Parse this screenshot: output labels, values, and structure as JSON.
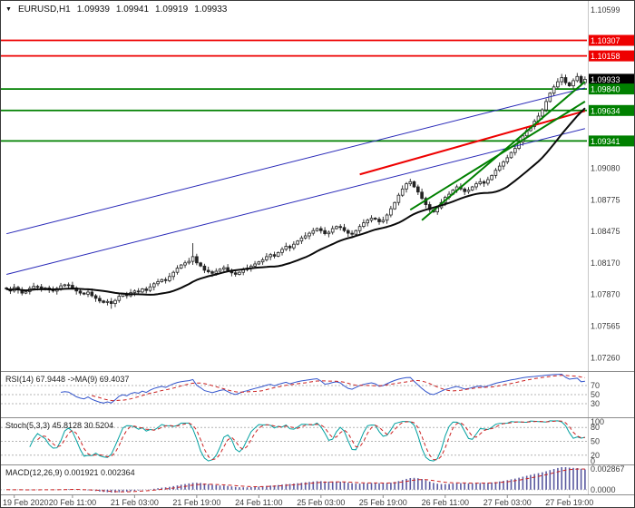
{
  "symbol_info": {
    "dropdown_icon": "▼",
    "symbol": "EURUSD,H1",
    "open": "1.09939",
    "high": "1.09941",
    "low": "1.09919",
    "close": "1.09933"
  },
  "colors": {
    "background": "#ffffff",
    "resistance": "#ee0000",
    "support": "#008000",
    "current_price_bg": "#000000",
    "badge_text": "#ffffff",
    "channel": "#2929b8",
    "candle": "#232323",
    "candle_up_fill": "#ffffff",
    "ma": "#0a0a0a",
    "rsi_line": "#3355cc",
    "rsi_signal": "#cc2222",
    "stoch_line": "#00a0a0",
    "stoch_signal": "#cc2222",
    "macd_hist": "#5a5aa0",
    "macd_signal": "#cc2222",
    "axis_text": "#3c3c3c",
    "level_dash": "#b4b4b4",
    "separator": "#8c8c8c",
    "axis_border": "#c8c8c8"
  },
  "chart_data": {
    "type": "candlestick",
    "title": "EURUSD,H1",
    "timeframe": "H1",
    "ylim": [
      1.07132,
      1.10686
    ],
    "first_open": 1.0793,
    "ma_period": 21,
    "closes": [
      1.0792,
      1.079,
      1.07935,
      1.0791,
      1.0788,
      1.07895,
      1.07925,
      1.07945,
      1.0794,
      1.07915,
      1.0793,
      1.0791,
      1.079,
      1.07925,
      1.0795,
      1.0796,
      1.07955,
      1.0793,
      1.079,
      1.0788,
      1.0787,
      1.0789,
      1.07855,
      1.0783,
      1.07805,
      1.0779,
      1.078,
      1.0778,
      1.0781,
      1.0785,
      1.0787,
      1.07855,
      1.07885,
      1.079,
      1.0789,
      1.0792,
      1.07905,
      1.0794,
      1.0797,
      1.0799,
      1.0801,
      1.08,
      1.0804,
      1.0808,
      1.0812,
      1.0815,
      1.0817,
      1.08185,
      1.0823,
      1.0817,
      1.0814,
      1.081,
      1.08085,
      1.0807,
      1.0809,
      1.0811,
      1.08125,
      1.081,
      1.08075,
      1.0806,
      1.0808,
      1.08105,
      1.0812,
      1.0814,
      1.0816,
      1.0818,
      1.082,
      1.0823,
      1.0825,
      1.08235,
      1.0827,
      1.083,
      1.0833,
      1.08315,
      1.0835,
      1.0838,
      1.0841,
      1.0843,
      1.08455,
      1.0848,
      1.085,
      1.0848,
      1.0845,
      1.08465,
      1.085,
      1.0852,
      1.0851,
      1.0848,
      1.08455,
      1.08445,
      1.0848,
      1.0852,
      1.08555,
      1.0858,
      1.086,
      1.0859,
      1.08565,
      1.0858,
      1.0863,
      1.0869,
      1.0875,
      1.0882,
      1.0888,
      1.0893,
      1.0895,
      1.089,
      1.0885,
      1.0879,
      1.0873,
      1.0868,
      1.0866,
      1.087,
      1.0875,
      1.088,
      1.0883,
      1.0887,
      1.089,
      1.0888,
      1.08855,
      1.0887,
      1.089,
      1.0893,
      1.0895,
      1.08935,
      1.0897,
      1.0901,
      1.0906,
      1.091,
      1.0914,
      1.0918,
      1.0923,
      1.0927,
      1.0933,
      1.0939,
      1.0944,
      1.0948,
      1.0953,
      1.0958,
      1.0964,
      1.0972,
      1.098,
      1.0986,
      1.0991,
      1.0995,
      1.099,
      1.0987,
      1.0992,
      1.0996,
      1.099,
      1.09933
    ],
    "wick_overrides": [
      {
        "i": 27,
        "low": 1.0773
      },
      {
        "i": 48,
        "high": 1.0836
      },
      {
        "i": 143,
        "high": 1.09985
      }
    ],
    "levels": {
      "resistance": [
        {
          "text": "1.10307",
          "value": 1.10307
        },
        {
          "text": "1.10158",
          "value": 1.10158
        }
      ],
      "current": {
        "text": "1.09933",
        "value": 1.09933
      },
      "support": [
        {
          "text": "1.09840",
          "value": 1.0984
        },
        {
          "text": "1.09634",
          "value": 1.09634
        },
        {
          "text": "1.09341",
          "value": 1.09341
        }
      ]
    },
    "trendlines": [
      {
        "i1": 0,
        "p1": 1.0845,
        "i2": 149,
        "p2": 1.0985,
        "role": "channel",
        "width": 1
      },
      {
        "i1": 0,
        "p1": 1.0806,
        "i2": 149,
        "p2": 1.0946,
        "role": "channel",
        "width": 1
      },
      {
        "i1": 91,
        "p1": 1.0902,
        "i2": 149,
        "p2": 1.0963,
        "role": "resistance",
        "width": 2
      },
      {
        "i1": 104,
        "p1": 1.0868,
        "i2": 149,
        "p2": 1.0972,
        "role": "support",
        "width": 2
      },
      {
        "i1": 107,
        "p1": 1.0858,
        "i2": 149,
        "p2": 1.0991,
        "role": "support",
        "width": 2
      }
    ],
    "y_ticks": [
      {
        "text": "1.10599",
        "value": 1.10599
      },
      {
        "text": "1.09080",
        "value": 1.0908
      },
      {
        "text": "1.08775",
        "value": 1.08775
      },
      {
        "text": "1.08475",
        "value": 1.08475
      },
      {
        "text": "1.08170",
        "value": 1.0817
      },
      {
        "text": "1.07870",
        "value": 1.0787
      },
      {
        "text": "1.07565",
        "value": 1.07565
      },
      {
        "text": "1.07260",
        "value": 1.0726
      }
    ],
    "x_ticks": [
      {
        "text": "19 Feb 2020",
        "index": 2
      },
      {
        "text": "20 Feb 11:00",
        "index": 17
      },
      {
        "text": "21 Feb 03:00",
        "index": 33
      },
      {
        "text": "21 Feb 19:00",
        "index": 49
      },
      {
        "text": "24 Feb 11:00",
        "index": 65
      },
      {
        "text": "25 Feb 03:00",
        "index": 81
      },
      {
        "text": "25 Feb 19:00",
        "index": 97
      },
      {
        "text": "26 Feb 11:00",
        "index": 113
      },
      {
        "text": "27 Feb 03:00",
        "index": 129
      },
      {
        "text": "27 Feb 19:00",
        "index": 145
      }
    ],
    "indicators": {
      "rsi": {
        "label": "RSI(14) 67.9448 ->MA(9) 69.4037",
        "period": 14,
        "signal": 9,
        "value": 67.9448,
        "signal_value": 69.4037,
        "levels": [
          70,
          50,
          30
        ]
      },
      "stoch": {
        "label": "Stoch(5,3,3) 45.8128 30.5204",
        "k": 5,
        "slowing": 3,
        "d": 3,
        "value": 45.8128,
        "signal_value": 30.5204,
        "axis_labels": [
          100,
          80,
          50,
          20,
          0
        ],
        "levels": [
          80,
          50,
          20
        ]
      },
      "macd": {
        "label": "MACD(12,26,9) 0.001921 0.002364",
        "fast": 12,
        "slow": 26,
        "signal": 9,
        "value": 0.001921,
        "signal_value": 0.002364,
        "axis": [
          {
            "text": "0.002867",
            "value": 0.002867
          },
          {
            "text": "0.0000",
            "value": 0
          }
        ]
      }
    }
  }
}
